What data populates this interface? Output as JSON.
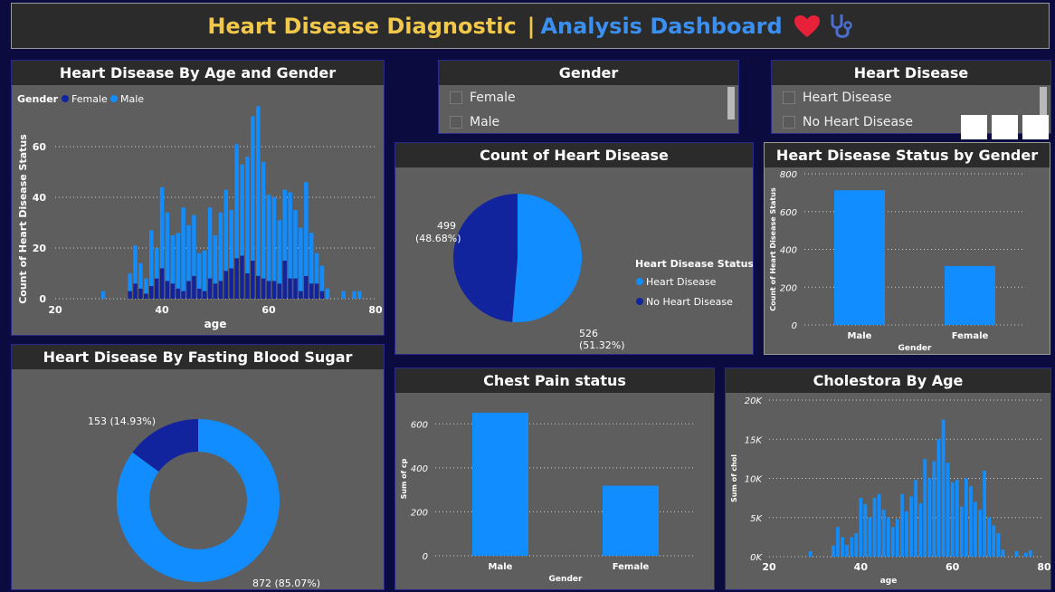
{
  "header": {
    "title_part1": "Heart Disease Diagnostic",
    "separator": "|",
    "title_part2": "Analysis Dashboard"
  },
  "age_gender": {
    "title": "Heart Disease By Age and Gender",
    "legend_title": "Gender",
    "legend": [
      "Female",
      "Male"
    ]
  },
  "gender_slicer": {
    "title": "Gender",
    "options": [
      "Female",
      "Male"
    ]
  },
  "hd_slicer": {
    "title": "Heart Disease",
    "options": [
      "Heart Disease",
      "No Heart Disease"
    ]
  },
  "count_hd": {
    "title": "Count of Heart Disease",
    "legend_title": "Heart Disease Status",
    "legend": [
      "Heart Disease",
      "No Heart Disease"
    ],
    "label_nhd_value": "499",
    "label_nhd_pct": "(48.68%)",
    "label_hd_value": "526",
    "label_hd_pct": "(51.32%)"
  },
  "status_gender": {
    "title": "Heart Disease Status by Gender"
  },
  "fbs": {
    "title": "Heart Disease By Fasting Blood Sugar",
    "label_small": "153 (14.93%)",
    "label_large": "872 (85.07%)"
  },
  "chest_pain": {
    "title": "Chest Pain status"
  },
  "chol": {
    "title": "Cholestora By Age"
  },
  "colors": {
    "bright_blue": "#118dff",
    "dark_blue": "#12239e",
    "panel": "#5e5e5e",
    "title_bar": "#2b2b2b",
    "background": "#0b0b3f"
  },
  "chart_data": [
    {
      "type": "bar",
      "title": "Heart Disease By Age and Gender",
      "xlabel": "age",
      "ylabel": "Count of Heart Disease Status",
      "xlim": [
        20,
        80
      ],
      "ylim": [
        0,
        70
      ],
      "xticks": [
        "20",
        "40",
        "60",
        "80"
      ],
      "yticks": [
        "0",
        "20",
        "40",
        "60"
      ],
      "legend_placement": "top-left",
      "x": [
        29,
        34,
        35,
        36,
        37,
        38,
        39,
        40,
        41,
        42,
        43,
        44,
        45,
        46,
        47,
        48,
        49,
        50,
        51,
        52,
        53,
        54,
        55,
        56,
        57,
        58,
        59,
        60,
        61,
        62,
        63,
        64,
        65,
        66,
        67,
        68,
        69,
        70,
        71,
        74,
        76,
        77
      ],
      "series": [
        {
          "name": "Male",
          "values": [
            3,
            7,
            15,
            10,
            6,
            22,
            12,
            32,
            27,
            19,
            22,
            33,
            22,
            24,
            14,
            16,
            28,
            19,
            27,
            32,
            23,
            45,
            36,
            46,
            57,
            67,
            46,
            34,
            33,
            25,
            28,
            34,
            27,
            25,
            37,
            20,
            12,
            10,
            4,
            3,
            3,
            3
          ]
        },
        {
          "name": "Female",
          "values": [
            0,
            3,
            6,
            4,
            2,
            5,
            8,
            12,
            7,
            6,
            4,
            3,
            7,
            9,
            4,
            3,
            8,
            6,
            7,
            11,
            12,
            16,
            17,
            10,
            15,
            9,
            8,
            7,
            7,
            6,
            15,
            8,
            8,
            3,
            9,
            6,
            6,
            3,
            0,
            0,
            0,
            0
          ]
        }
      ]
    },
    {
      "type": "pie",
      "title": "Count of Heart Disease",
      "legend_title": "Heart Disease Status",
      "legend_placement": "right",
      "categories": [
        "Heart Disease",
        "No Heart Disease"
      ],
      "values": [
        526,
        499
      ],
      "percents": [
        51.32,
        48.68
      ]
    },
    {
      "type": "bar",
      "title": "Heart Disease Status by Gender",
      "categories": [
        "Male",
        "Female"
      ],
      "values": [
        713,
        312
      ],
      "xlabel": "Gender",
      "ylabel": "Count of Heart Disease Status",
      "ylim": [
        0,
        800
      ],
      "yticks": [
        "0",
        "200",
        "400",
        "600",
        "800"
      ]
    },
    {
      "type": "pie",
      "title": "Heart Disease By Fasting Blood Sugar",
      "values": [
        872,
        153
      ],
      "percents": [
        85.07,
        14.93
      ]
    },
    {
      "type": "bar",
      "title": "Chest Pain status",
      "categories": [
        "Male",
        "Female"
      ],
      "values": [
        651,
        319
      ],
      "xlabel": "Gender",
      "ylabel": "Sum of cp",
      "ylim": [
        0,
        700
      ],
      "yticks": [
        "0",
        "200",
        "400",
        "600"
      ]
    },
    {
      "type": "bar",
      "title": "Cholestora By Age",
      "xlabel": "age",
      "ylabel": "Sum of chol",
      "xlim": [
        20,
        80
      ],
      "ylim": [
        0,
        20000
      ],
      "xticks": [
        "20",
        "40",
        "60",
        "80"
      ],
      "yticks": [
        "0K",
        "5K",
        "10K",
        "15K",
        "20K"
      ],
      "x": [
        29,
        34,
        35,
        36,
        37,
        38,
        39,
        40,
        41,
        42,
        43,
        44,
        45,
        46,
        47,
        48,
        49,
        50,
        51,
        52,
        53,
        54,
        55,
        56,
        57,
        58,
        59,
        60,
        61,
        62,
        63,
        64,
        65,
        66,
        67,
        68,
        69,
        70,
        71,
        74,
        76,
        77
      ],
      "values": [
        700,
        1400,
        3800,
        2500,
        1500,
        2500,
        3000,
        7500,
        6700,
        5000,
        7500,
        8000,
        6000,
        5000,
        3800,
        4800,
        8000,
        5800,
        7700,
        9800,
        6800,
        12500,
        10000,
        12200,
        15000,
        17500,
        12000,
        9500,
        9800,
        6400,
        10000,
        9000,
        7000,
        6000,
        11000,
        5000,
        4000,
        3000,
        900,
        700,
        500,
        800
      ]
    }
  ]
}
